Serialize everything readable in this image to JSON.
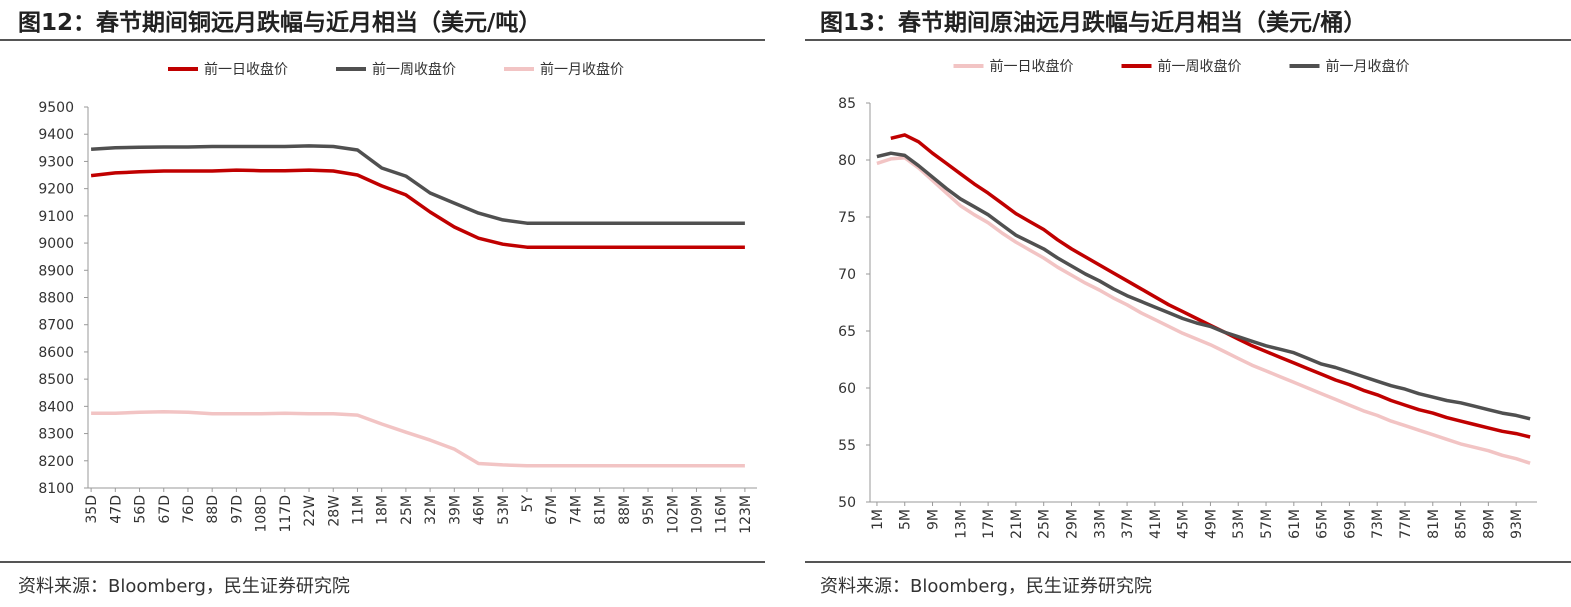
{
  "chart_data": [
    {
      "type": "line",
      "title": "图12：春节期间铜远月跌幅与近月相当（美元/吨）",
      "source": "资料来源：Bloomberg，民生证券研究院",
      "categories": [
        "35D",
        "47D",
        "56D",
        "67D",
        "76D",
        "88D",
        "97D",
        "108D",
        "117D",
        "22W",
        "28W",
        "11M",
        "18M",
        "25M",
        "32M",
        "39M",
        "46M",
        "53M",
        "5Y",
        "67M",
        "74M",
        "81M",
        "88M",
        "95M",
        "102M",
        "109M",
        "116M",
        "123M"
      ],
      "series": [
        {
          "name": "前一日收盘价",
          "color": "#c00000",
          "values": [
            9248,
            9258,
            9262,
            9265,
            9265,
            9265,
            9268,
            9266,
            9266,
            9268,
            9265,
            9250,
            9210,
            9177,
            9114,
            9059,
            9018,
            8996,
            8985,
            8985,
            8985,
            8985,
            8985,
            8985,
            8985,
            8985,
            8985,
            8985
          ]
        },
        {
          "name": "前一周收盘价",
          "color": "#505050",
          "values": [
            9345,
            9350,
            9352,
            9353,
            9353,
            9355,
            9355,
            9355,
            9355,
            9357,
            9355,
            9342,
            9276,
            9246,
            9184,
            9147,
            9110,
            9085,
            9073,
            9073,
            9073,
            9073,
            9073,
            9073,
            9073,
            9073,
            9073,
            9073
          ]
        },
        {
          "name": "前一月收盘价",
          "color": "#f2c4c4",
          "values": [
            8375,
            8375,
            8378,
            8380,
            8378,
            8373,
            8373,
            8373,
            8375,
            8373,
            8373,
            8368,
            8335,
            8305,
            8276,
            8243,
            8190,
            8185,
            8182,
            8182,
            8182,
            8182,
            8182,
            8182,
            8182,
            8182,
            8182,
            8182
          ]
        }
      ],
      "ylim": [
        8100,
        9500
      ],
      "yticks": [
        8100,
        8200,
        8300,
        8400,
        8500,
        8600,
        8700,
        8800,
        8900,
        9000,
        9100,
        9200,
        9300,
        9400,
        9500
      ],
      "legend": "top",
      "grid": false
    },
    {
      "type": "line",
      "title": "图13：春节期间原油远月跌幅与近月相当（美元/桶）",
      "source": "资料来源：Bloomberg，民生证券研究院",
      "categories": [
        "1M",
        null,
        "5M",
        null,
        "9M",
        null,
        "13M",
        null,
        "17M",
        null,
        "21M",
        null,
        "25M",
        null,
        "29M",
        null,
        "33M",
        null,
        "37M",
        null,
        "41M",
        null,
        "45M",
        null,
        "49M",
        null,
        "53M",
        null,
        "57M",
        null,
        "61M",
        null,
        "65M",
        null,
        "69M",
        null,
        "73M",
        null,
        "77M",
        null,
        "81M",
        null,
        "85M",
        null,
        "89M",
        null,
        "93M",
        null
      ],
      "series": [
        {
          "name": "前一日收盘价",
          "color": "#f2c4c4",
          "values": [
            79.7,
            80.1,
            80.2,
            79.3,
            78.2,
            77.1,
            76.0,
            75.2,
            74.5,
            73.6,
            72.8,
            72.1,
            71.4,
            70.6,
            69.9,
            69.2,
            68.6,
            67.9,
            67.3,
            66.6,
            66.0,
            65.4,
            64.8,
            64.3,
            63.8,
            63.2,
            62.6,
            62.0,
            61.5,
            61.0,
            60.5,
            60.0,
            59.5,
            59.0,
            58.5,
            58.0,
            57.6,
            57.1,
            56.7,
            56.3,
            55.9,
            55.5,
            55.1,
            54.8,
            54.5,
            54.1,
            53.8,
            53.4
          ]
        },
        {
          "name": "前一周收盘价",
          "color": "#c00000",
          "values": [
            null,
            81.9,
            82.2,
            81.6,
            80.6,
            79.7,
            78.8,
            77.9,
            77.1,
            76.2,
            75.3,
            74.6,
            73.9,
            73.0,
            72.2,
            71.5,
            70.8,
            70.1,
            69.4,
            68.7,
            68.0,
            67.3,
            66.7,
            66.1,
            65.5,
            64.9,
            64.3,
            63.7,
            63.2,
            62.7,
            62.2,
            61.7,
            61.2,
            60.7,
            60.3,
            59.8,
            59.4,
            58.9,
            58.5,
            58.1,
            57.8,
            57.4,
            57.1,
            56.8,
            56.5,
            56.2,
            56.0,
            55.7
          ]
        },
        {
          "name": "前一月收盘价",
          "color": "#505050",
          "values": [
            80.3,
            80.6,
            80.4,
            79.5,
            78.5,
            77.5,
            76.6,
            75.9,
            75.2,
            74.3,
            73.4,
            72.8,
            72.2,
            71.4,
            70.7,
            70.0,
            69.4,
            68.7,
            68.1,
            67.6,
            67.1,
            66.6,
            66.1,
            65.7,
            65.4,
            64.9,
            64.5,
            64.1,
            63.7,
            63.4,
            63.1,
            62.6,
            62.1,
            61.8,
            61.4,
            61.0,
            60.6,
            60.2,
            59.9,
            59.5,
            59.2,
            58.9,
            58.7,
            58.4,
            58.1,
            57.8,
            57.6,
            57.3
          ]
        }
      ],
      "ylim": [
        50,
        85
      ],
      "yticks": [
        50,
        55,
        60,
        65,
        70,
        75,
        80,
        85
      ],
      "legend": "top",
      "grid": false
    }
  ]
}
